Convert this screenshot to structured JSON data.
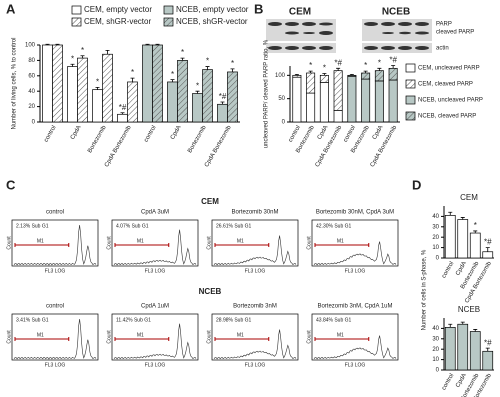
{
  "panel_labels": [
    "A",
    "B",
    "C",
    "D"
  ],
  "chart_data": [
    {
      "type": "bar",
      "y_label": "Number of living cells, % to control",
      "categories": [
        "control",
        "CpdA",
        "Bortezomib",
        "CpdA Bortezomib",
        "control",
        "CpdA",
        "Bortezomib",
        "CpdA Bortezomib"
      ],
      "ylim": [
        0,
        100
      ],
      "yticks": [
        0,
        20,
        40,
        60,
        80,
        100
      ],
      "legend": "top",
      "series": [
        {
          "name": "CEM, empty vector",
          "color": "#ffffff",
          "hatch": false,
          "values": [
            100,
            72,
            42,
            10,
            null,
            null,
            null,
            null
          ],
          "errors": [
            1,
            3,
            3,
            2,
            null,
            null,
            null,
            null
          ],
          "marks": [
            null,
            "*",
            "*",
            "*#",
            null,
            null,
            null,
            null
          ]
        },
        {
          "name": "CEM, shGR-vector",
          "color": "#ffffff",
          "hatch": true,
          "values": [
            100,
            83,
            88,
            52,
            null,
            null,
            null,
            null
          ],
          "errors": [
            1,
            3,
            5,
            5,
            null,
            null,
            null,
            null
          ],
          "marks": [
            null,
            "*",
            null,
            "*",
            null,
            null,
            null,
            null
          ]
        },
        {
          "name": "NCEB, empty vector",
          "color": "#b8c8c5",
          "hatch": false,
          "values": [
            null,
            null,
            null,
            null,
            100,
            52,
            37,
            23
          ],
          "errors": [
            null,
            null,
            null,
            null,
            1,
            3,
            3,
            3
          ],
          "marks": [
            null,
            null,
            null,
            null,
            null,
            "*",
            "*",
            "*#"
          ]
        },
        {
          "name": "NCEB, shGR-vector",
          "color": "#b8c8c5",
          "hatch": true,
          "values": [
            null,
            null,
            null,
            null,
            100,
            80,
            68,
            65
          ],
          "errors": [
            null,
            null,
            null,
            null,
            1,
            3,
            4,
            4
          ],
          "marks": [
            null,
            null,
            null,
            null,
            null,
            "*",
            "*",
            "*"
          ]
        }
      ]
    },
    {
      "type": "bar",
      "stacked": true,
      "y_label": "uncleaved PARP/ cleaved PARP ratio, %",
      "categories": [
        "control",
        "Bortezomib",
        "CpdA",
        "CpdA Bortezomib",
        "control",
        "Bortezomib",
        "CpdA",
        "CpdA Bortezomib"
      ],
      "ylim": [
        0,
        120
      ],
      "yticks": [
        0,
        50,
        100
      ],
      "legend": "right",
      "series": [
        {
          "name": "CEM, uncleaved PARP",
          "color": "#ffffff",
          "hatch": false,
          "values": [
            96,
            62,
            85,
            25,
            null,
            null,
            null,
            null
          ]
        },
        {
          "name": "CEM, cleaved PARP",
          "color": "#ffffff",
          "hatch": true,
          "values": [
            4,
            43,
            15,
            85,
            null,
            null,
            null,
            null
          ],
          "errors": [
            2,
            4,
            4,
            5,
            null,
            null,
            null,
            null
          ],
          "marks": [
            null,
            "*",
            "*",
            "*#",
            null,
            null,
            null,
            null
          ]
        },
        {
          "name": "NCEB, uncleaved PARP",
          "color": "#b8c8c5",
          "hatch": false,
          "values": [
            null,
            null,
            null,
            null,
            98,
            92,
            88,
            90
          ]
        },
        {
          "name": "NCEB, cleaved PARP",
          "color": "#b8c8c5",
          "hatch": true,
          "values": [
            null,
            null,
            null,
            null,
            2,
            13,
            22,
            25
          ],
          "errors": [
            null,
            null,
            null,
            null,
            2,
            4,
            5,
            6
          ],
          "marks": [
            null,
            null,
            null,
            null,
            null,
            "*",
            "*",
            "*#"
          ]
        }
      ]
    },
    {
      "type": "bar",
      "title": "CEM",
      "y_label": "Number of cells in S-phase, %",
      "categories": [
        "control",
        "CpdA",
        "Bortezomib",
        "CpdA Bortezomib"
      ],
      "ylim": [
        0,
        50
      ],
      "yticks": [
        0,
        10,
        20,
        30,
        40
      ],
      "series": [
        {
          "color": "#ffffff",
          "hatch": false,
          "values": [
            41,
            37,
            24,
            6
          ],
          "errors": [
            3,
            2,
            2,
            4
          ],
          "marks": [
            null,
            null,
            "*",
            "*#"
          ]
        }
      ]
    },
    {
      "type": "bar",
      "title": "NCEB",
      "categories": [
        "control",
        "CpdA",
        "Bortezomib",
        "CpdA Bortezomib"
      ],
      "ylim": [
        0,
        50
      ],
      "yticks": [
        0,
        10,
        20,
        30,
        40
      ],
      "series": [
        {
          "color": "#b8c8c5",
          "hatch": false,
          "values": [
            41,
            44,
            37,
            18
          ],
          "errors": [
            3,
            2,
            2,
            3
          ],
          "marks": [
            null,
            null,
            null,
            "*#"
          ]
        }
      ]
    }
  ],
  "blot": {
    "groups": [
      "CEM",
      "NCEB"
    ],
    "bands": [
      "PARP",
      "cleaved PARP",
      "actin"
    ]
  },
  "flow": {
    "marker": "M1",
    "y_axis": "Count",
    "x_axis": "FL3 LOG",
    "rows": [
      {
        "title": "CEM",
        "panels": [
          {
            "title": "control",
            "gate": "2.13% Sub G1"
          },
          {
            "title": "CpdA 3uM",
            "gate": "4.07% Sub G1"
          },
          {
            "title": "Bortezomib 30nM",
            "gate": "26.61% Sub G1"
          },
          {
            "title": "Bortezomib 30nM, CpdA 3uM",
            "gate": "42.30% Sub G1"
          }
        ]
      },
      {
        "title": "NCEB",
        "panels": [
          {
            "title": "control",
            "gate": "3.41% Sub G1"
          },
          {
            "title": "CpdA 1uM",
            "gate": "11.42% Sub G1"
          },
          {
            "title": "Bortezomib 3nM",
            "gate": "28.98% Sub G1"
          },
          {
            "title": "Bortezomib 3nM, CpdA 1uM",
            "gate": "43.84% Sub G1"
          }
        ]
      }
    ]
  }
}
